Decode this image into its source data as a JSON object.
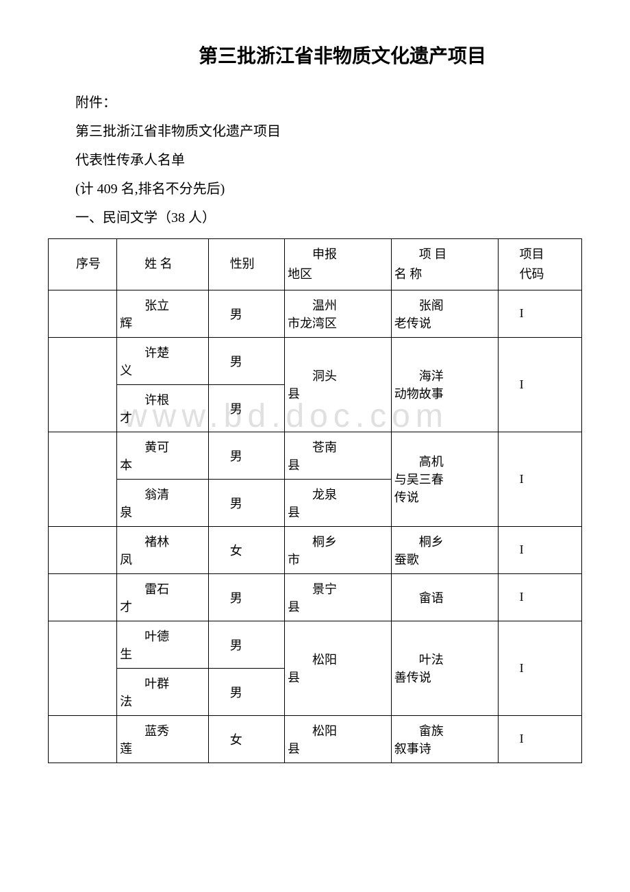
{
  "watermark": "www.bd.doc.com",
  "title": "第三批浙江省非物质文化遗产项目",
  "paragraphs": {
    "p1": "附件：",
    "p2": "第三批浙江省非物质文化遗产项目",
    "p3": "代表性传承人名单",
    "p4": "(计 409 名,排名不分先后)",
    "p5": "一、民间文学（38 人）"
  },
  "table": {
    "headers": {
      "seq": "序号",
      "name": "姓 名",
      "gender": "性别",
      "region_l1": "申报",
      "region_l2": "地区",
      "project_l1": "项 目",
      "project_l2": "名 称",
      "code_l1": "项目",
      "code_l2": "代码"
    },
    "rows": {
      "r1": {
        "name_l1": "张立",
        "name_l2": "辉",
        "gender": "男",
        "region_l1": "温州",
        "region_l2": "市龙湾区",
        "project_l1": "张阁",
        "project_l2": "老传说",
        "code": "I"
      },
      "r2": {
        "name_l1": "许楚",
        "name_l2": "义",
        "gender": "男",
        "region_l1": "洞头",
        "region_l2": "县",
        "project_l1": "海洋",
        "project_l2": "动物故事",
        "code": "I"
      },
      "r3": {
        "name_l1": "许根",
        "name_l2": "才",
        "gender": "男"
      },
      "r4": {
        "name_l1": "黄可",
        "name_l2": "本",
        "gender": "男",
        "region_l1": "苍南",
        "region_l2": "县",
        "project_l1": "高机",
        "project_l2": "与吴三春",
        "project_l3": "传说",
        "code": "I"
      },
      "r5": {
        "name_l1": "翁清",
        "name_l2": "泉",
        "gender": "男",
        "region_l1": "龙泉",
        "region_l2": "县"
      },
      "r6": {
        "name_l1": "褚林",
        "name_l2": "凤",
        "gender": "女",
        "region_l1": "桐乡",
        "region_l2": "市",
        "project_l1": "桐乡",
        "project_l2": "蚕歌",
        "code": "I"
      },
      "r7": {
        "name_l1": "雷石",
        "name_l2": "才",
        "gender": "男",
        "region_l1": "景宁",
        "region_l2": "县",
        "project": "畲语",
        "code": "I"
      },
      "r8": {
        "name_l1": "叶德",
        "name_l2": "生",
        "gender": "男",
        "region_l1": "松阳",
        "region_l2": "县",
        "project_l1": "叶法",
        "project_l2": "善传说",
        "code": "I"
      },
      "r9": {
        "name_l1": "叶群",
        "name_l2": "法",
        "gender": "男"
      },
      "r10": {
        "name_l1": "蓝秀",
        "name_l2": "莲",
        "gender": "女",
        "region_l1": "松阳",
        "region_l2": "县",
        "project_l1": "畲族",
        "project_l2": "叙事诗",
        "code": "I"
      }
    }
  }
}
